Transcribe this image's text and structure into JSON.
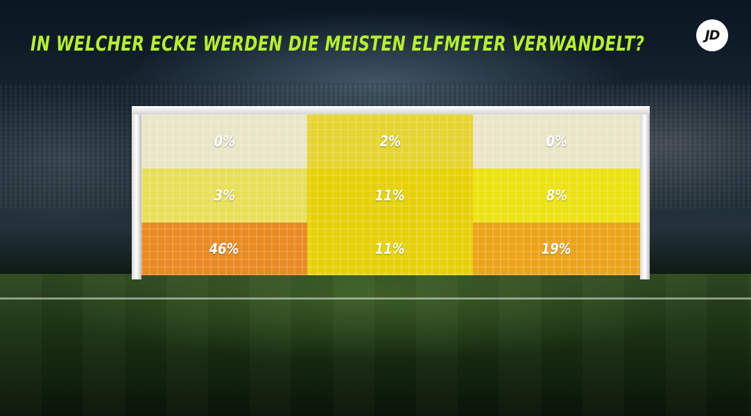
{
  "chart_data": {
    "type": "heatmap",
    "title": "IN WELCHER ECKE WERDEN DIE MEISTEN ELFMETER VERWANDELT?",
    "rows": [
      "top",
      "middle",
      "bottom"
    ],
    "columns": [
      "left",
      "center",
      "right"
    ],
    "values": [
      [
        0,
        2,
        0
      ],
      [
        3,
        11,
        8
      ],
      [
        46,
        11,
        19
      ]
    ],
    "labels": [
      [
        "0%",
        "2%",
        "0%"
      ],
      [
        "3%",
        "11%",
        "8%"
      ],
      [
        "46%",
        "11%",
        "19%"
      ]
    ],
    "colors": [
      [
        "#e9e6c7",
        "#e6d431",
        "#e9e6c7"
      ],
      [
        "#e8df5b",
        "#e6d20a",
        "#ece214"
      ],
      [
        "#e98a23",
        "#e6d20a",
        "#eda41a"
      ]
    ]
  },
  "brand": {
    "logo_text": "JD",
    "accent": "#b6f02d"
  }
}
